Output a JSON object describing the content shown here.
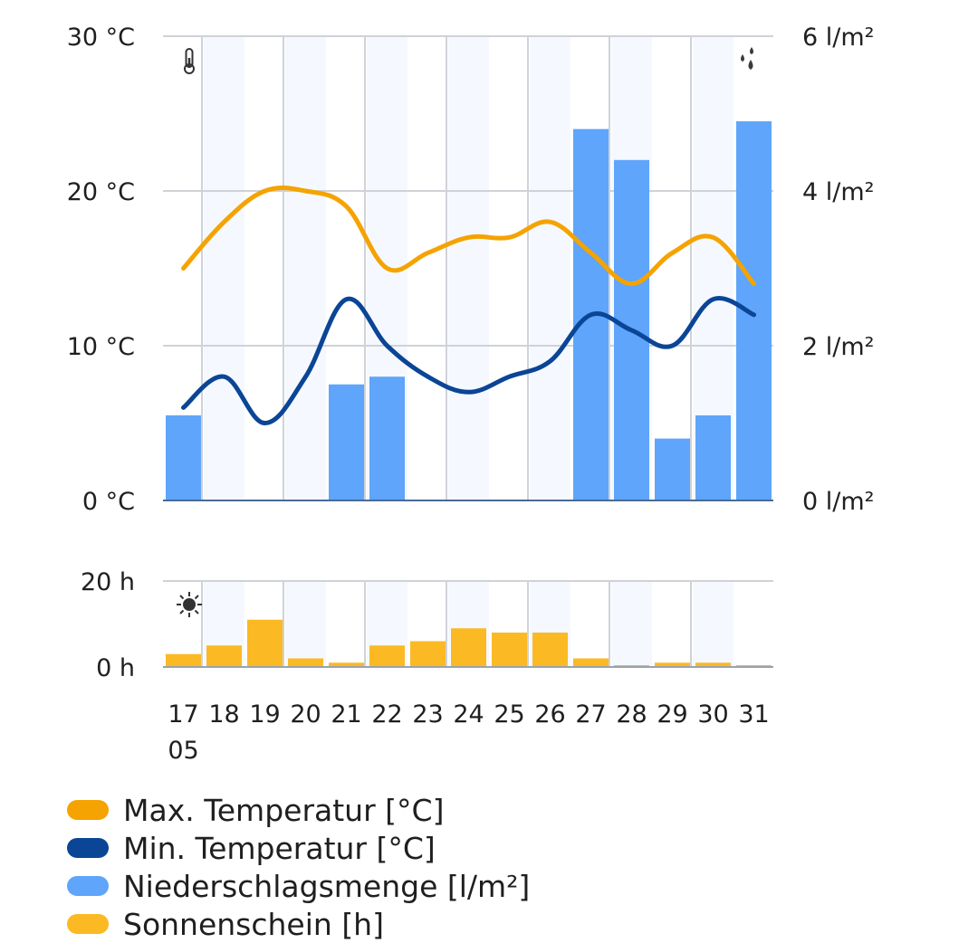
{
  "chart_data": [
    {
      "type": "bar+line",
      "x": [
        "17",
        "18",
        "19",
        "20",
        "21",
        "22",
        "23",
        "24",
        "25",
        "26",
        "27",
        "28",
        "29",
        "30",
        "31"
      ],
      "x_sub_first": "05",
      "y_left_ticks": [
        "0 °C",
        "10 °C",
        "20 °C",
        "30 °C"
      ],
      "y_left_range": [
        0,
        30
      ],
      "y_right_ticks": [
        "0 l/m²",
        "2 l/m²",
        "4 l/m²",
        "6 l/m²"
      ],
      "y_right_range": [
        0,
        6
      ],
      "grid": true,
      "series": [
        {
          "name": "Max.  Temperatur [°C]",
          "kind": "line",
          "axis": "left",
          "color": "#f5a300",
          "values": [
            15,
            18,
            20,
            20,
            19,
            15,
            16,
            17,
            17,
            18,
            16,
            14,
            16,
            17,
            14
          ]
        },
        {
          "name": "Min.  Temperatur [°C]",
          "kind": "line",
          "axis": "left",
          "color": "#0a4596",
          "values": [
            6,
            8,
            5,
            8,
            13,
            10,
            8,
            7,
            8,
            9,
            12,
            11,
            10,
            13,
            12
          ]
        },
        {
          "name": "Niederschlagsmenge [l/m²]",
          "kind": "bar",
          "axis": "right",
          "color": "#5ea5fb",
          "values": [
            1.1,
            0,
            0,
            0,
            1.5,
            1.6,
            0,
            0,
            0,
            0,
            4.8,
            4.4,
            0.8,
            1.1,
            4.9
          ]
        }
      ]
    },
    {
      "type": "bar",
      "x": [
        "17",
        "18",
        "19",
        "20",
        "21",
        "22",
        "23",
        "24",
        "25",
        "26",
        "27",
        "28",
        "29",
        "30",
        "31"
      ],
      "y_ticks": [
        "0 h",
        "20 h"
      ],
      "y_range": [
        0,
        20
      ],
      "grid": true,
      "series": [
        {
          "name": "Sonnenschein [h]",
          "kind": "bar",
          "color": "#fbb924",
          "values": [
            3,
            5,
            11,
            2,
            1,
            5,
            6,
            9,
            8,
            8,
            2,
            0,
            1,
            1,
            0
          ]
        }
      ]
    }
  ],
  "icons": {
    "temperature": "thermometer-icon",
    "precipitation": "raindrops-icon",
    "sunshine": "sun-icon"
  },
  "legend": [
    {
      "label": "Max.  Temperatur [°C]",
      "color": "#f5a300"
    },
    {
      "label": "Min.  Temperatur [°C]",
      "color": "#0a4596"
    },
    {
      "label": "Niederschlagsmenge [l/m²]",
      "color": "#5ea5fb"
    },
    {
      "label": "Sonnenschein [h]",
      "color": "#fbb924"
    }
  ]
}
